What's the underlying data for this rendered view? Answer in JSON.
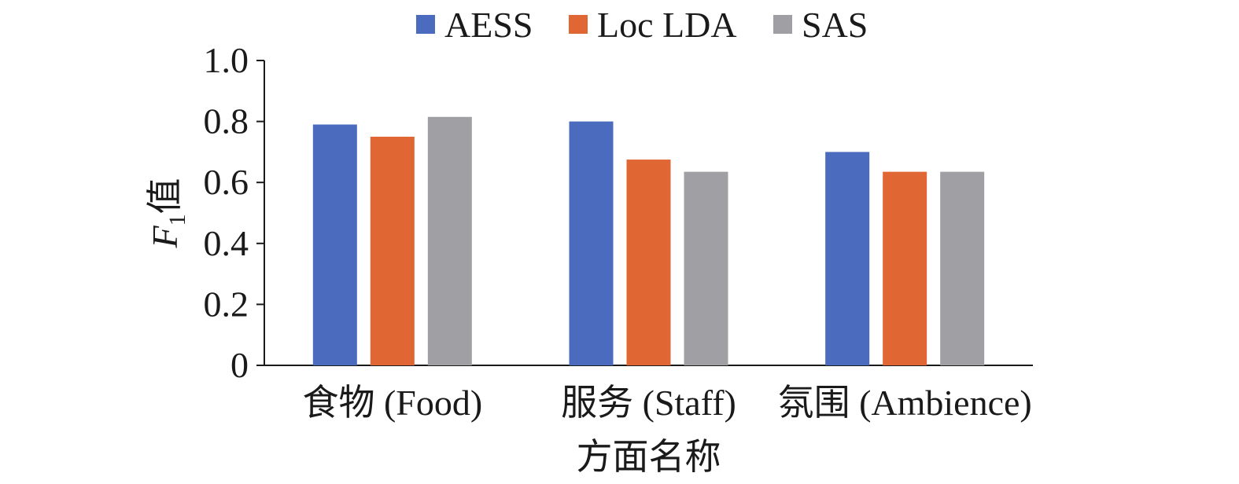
{
  "chart_data": {
    "type": "bar",
    "title": "",
    "xlabel": "方面名称",
    "ylabel": "F1值",
    "ylabel_main": "F",
    "ylabel_sub": "1",
    "ylabel_suffix": "值",
    "categories": [
      "食物 (Food)",
      "服务 (Staff)",
      "氛围 (Ambience)"
    ],
    "ylim": [
      0,
      1.0
    ],
    "yticks": [
      0,
      0.2,
      0.4,
      0.6,
      0.8,
      1.0
    ],
    "ytick_labels": [
      "0",
      "0.2",
      "0.4",
      "0.6",
      "0.8",
      "1.0"
    ],
    "grid": false,
    "legend_position": "top",
    "series": [
      {
        "name": "AESS",
        "color": "#4A6BBE",
        "values": [
          0.79,
          0.8,
          0.7
        ]
      },
      {
        "name": "Loc LDA",
        "color": "#E06633",
        "values": [
          0.75,
          0.675,
          0.635
        ]
      },
      {
        "name": "SAS",
        "color": "#A0A0A4",
        "values": [
          0.815,
          0.635,
          0.635
        ]
      }
    ]
  }
}
